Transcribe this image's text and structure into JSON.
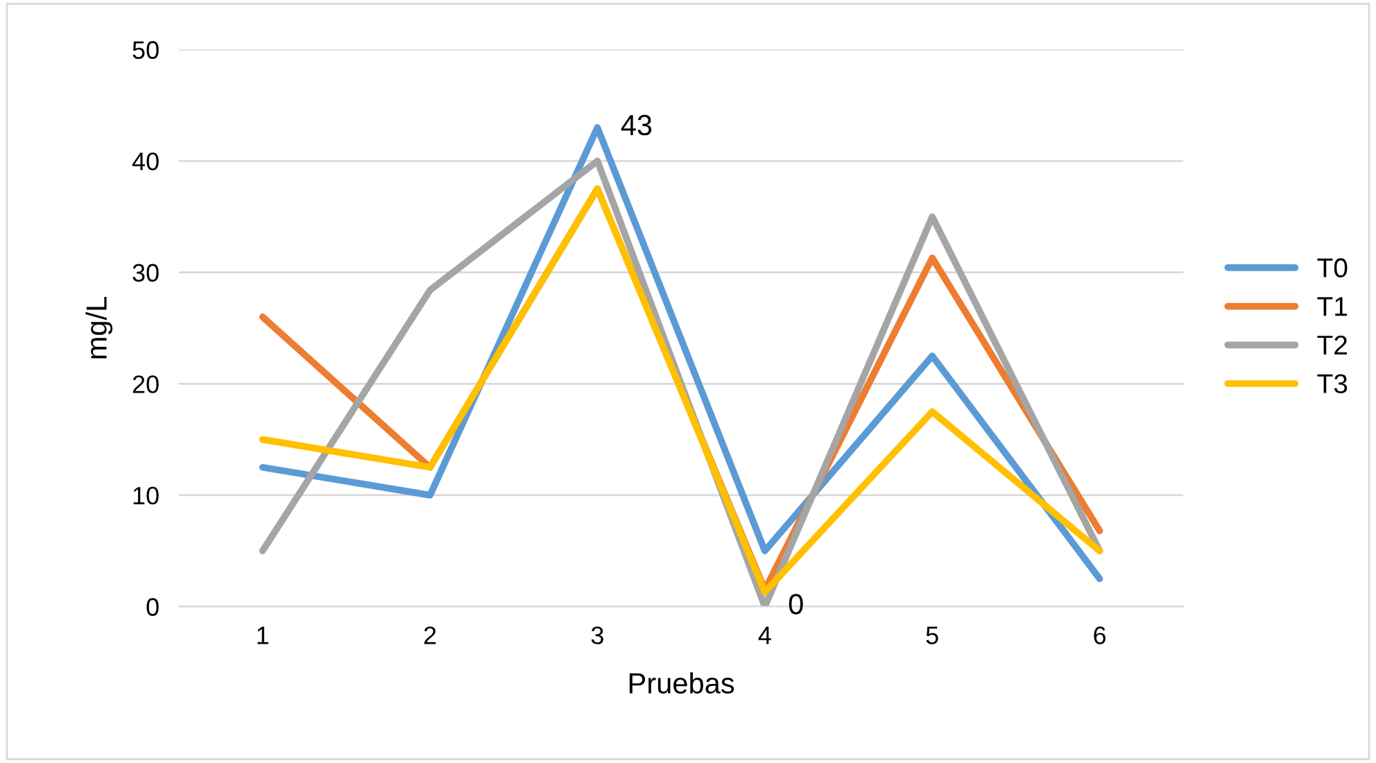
{
  "chart_data": {
    "type": "line",
    "xlabel": "Pruebas",
    "ylabel": "mg/L",
    "categories": [
      "1",
      "2",
      "3",
      "4",
      "5",
      "6"
    ],
    "series": [
      {
        "name": "T0",
        "color": "#5b9bd5",
        "values": [
          12.5,
          10,
          43,
          5,
          22.5,
          2.5
        ],
        "value_labels": [
          null,
          null,
          "43",
          null,
          null,
          null
        ]
      },
      {
        "name": "T1",
        "color": "#ed7d31",
        "values": [
          26,
          12.5,
          37.5,
          1.5,
          31.3,
          6.8
        ]
      },
      {
        "name": "T2",
        "color": "#a5a5a5",
        "values": [
          5,
          28.4,
          40,
          0,
          35,
          5
        ],
        "value_labels": [
          null,
          null,
          null,
          "0",
          null,
          null
        ]
      },
      {
        "name": "T3",
        "color": "#ffc000",
        "values": [
          15,
          12.5,
          37.5,
          1.3,
          17.5,
          5
        ]
      }
    ],
    "ylim": [
      0,
      50
    ],
    "yticks": [
      0,
      10,
      20,
      30,
      40,
      50
    ],
    "grid": "y",
    "legend": "right",
    "marker": "none",
    "line_style": "solid"
  }
}
